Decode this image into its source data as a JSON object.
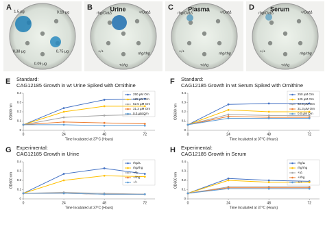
{
  "photos": [
    {
      "panel": "A",
      "labels": [
        "1.5 µg",
        "0.19 µg",
        "0.38 µg",
        "0.75 µg",
        "0.09 µg"
      ]
    },
    {
      "panel": "B",
      "title": "Urine",
      "labels": [
        "rhg/OatΔ",
        "+/OatΔ",
        "+/+",
        "rhg/rhg",
        "+/rhg"
      ]
    },
    {
      "panel": "C",
      "title": "Plasma",
      "labels": [
        "rhg/OatΔ",
        "+/OatΔ",
        "+/+",
        "rhg/rhg",
        "+/rhg"
      ]
    },
    {
      "panel": "D",
      "title": "Serum",
      "labels": [
        "rhg/OatΔ",
        "+/OatΔ",
        "+/+",
        "rhg/rhg",
        "+/rhg"
      ]
    }
  ],
  "chart_data": [
    {
      "type": "line",
      "panel": "E",
      "heading": "Standard:",
      "title": "CAG12185 Growth in wt Urine Spiked with Ornithine",
      "x_label": "Time Incubated at 37°C (Hours)",
      "y_label": "OD600 nm",
      "x": [
        0,
        24,
        48,
        72
      ],
      "xlim": [
        0,
        78
      ],
      "xticks": [
        0,
        24,
        48,
        72
      ],
      "ylim": [
        0,
        0.4
      ],
      "yticks": [
        0,
        0.1,
        0.2,
        0.3,
        0.4
      ],
      "series": [
        {
          "name": "250 µM Orn",
          "color": "#4472c4",
          "values": [
            0.06,
            0.24,
            0.33,
            0.34
          ]
        },
        {
          "name": "125 µM Orn",
          "color": "#ffc000",
          "values": [
            0.06,
            0.2,
            0.26,
            0.26
          ]
        },
        {
          "name": "62.5 µM Orn",
          "color": "#a5a5a5",
          "values": [
            0.06,
            0.14,
            0.16,
            0.17
          ]
        },
        {
          "name": "31.3 µM Orn",
          "color": "#ed7d31",
          "values": [
            0.06,
            0.09,
            0.08,
            0.07
          ]
        },
        {
          "name": "0.0 µM Orn",
          "color": "#5b9bd5",
          "values": [
            0.06,
            0.06,
            0.05,
            0.05
          ]
        }
      ]
    },
    {
      "type": "line",
      "panel": "F",
      "heading": "Standard:",
      "title": "CAG12185 Growth in wt Serum Spiked with Ornithine",
      "x_label": "Time Incubated at 37°C (Hours)",
      "y_label": "OD600 nm",
      "x": [
        0,
        24,
        48,
        72
      ],
      "xlim": [
        0,
        78
      ],
      "xticks": [
        0,
        24,
        48,
        72
      ],
      "ylim": [
        0,
        0.4
      ],
      "yticks": [
        0,
        0.1,
        0.2,
        0.3,
        0.4
      ],
      "series": [
        {
          "name": "250 µM Orn",
          "color": "#4472c4",
          "values": [
            0.06,
            0.28,
            0.29,
            0.29
          ]
        },
        {
          "name": "125 µM Orn",
          "color": "#ffc000",
          "values": [
            0.06,
            0.22,
            0.2,
            0.2
          ]
        },
        {
          "name": "62.5 µM Orn",
          "color": "#a5a5a5",
          "values": [
            0.06,
            0.17,
            0.16,
            0.16
          ]
        },
        {
          "name": "31.3 µM Orn",
          "color": "#ed7d31",
          "values": [
            0.06,
            0.15,
            0.14,
            0.14
          ]
        },
        {
          "name": "0.0 µM Orn",
          "color": "#5b9bd5",
          "values": [
            0.06,
            0.13,
            0.13,
            0.13
          ]
        }
      ]
    },
    {
      "type": "line",
      "panel": "G",
      "heading": "Experimental:",
      "title": "CAG12185 Growth in Urine",
      "x_label": "Time Incubated at 37°C (Hours)",
      "y_label": "OD600 nm",
      "x": [
        0,
        24,
        48,
        72
      ],
      "xlim": [
        0,
        78
      ],
      "xticks": [
        0,
        24,
        48,
        72
      ],
      "ylim": [
        0,
        0.4
      ],
      "yticks": [
        0,
        0.1,
        0.2,
        0.3,
        0.4
      ],
      "series": [
        {
          "name": "rhg/Δ",
          "color": "#4472c4",
          "values": [
            0.06,
            0.27,
            0.33,
            0.27
          ]
        },
        {
          "name": "rhg/rhg",
          "color": "#ffc000",
          "values": [
            0.06,
            0.2,
            0.25,
            0.24
          ]
        },
        {
          "name": "+/Δ",
          "color": "#a5a5a5",
          "values": [
            0.06,
            0.07,
            0.06,
            0.05
          ]
        },
        {
          "name": "+/rhg",
          "color": "#ed7d31",
          "values": [
            0.06,
            0.06,
            0.05,
            0.05
          ]
        },
        {
          "name": "+/+",
          "color": "#5b9bd5",
          "values": [
            0.06,
            0.06,
            0.05,
            0.05
          ]
        }
      ]
    },
    {
      "type": "line",
      "panel": "H",
      "heading": "Experimental:",
      "title": "CAG12185 Growth in Serum",
      "x_label": "Time Incubated at 37°C (Hours)",
      "y_label": "OD600 nm",
      "x": [
        0,
        24,
        48,
        72
      ],
      "xlim": [
        0,
        78
      ],
      "xticks": [
        0,
        24,
        48,
        72
      ],
      "ylim": [
        0,
        0.4
      ],
      "yticks": [
        0,
        0.1,
        0.2,
        0.3,
        0.4
      ],
      "series": [
        {
          "name": "rhg/Δ",
          "color": "#4472c4",
          "values": [
            0.06,
            0.22,
            0.2,
            0.19
          ]
        },
        {
          "name": "rhg/rhg",
          "color": "#ffc000",
          "values": [
            0.06,
            0.2,
            0.18,
            0.18
          ]
        },
        {
          "name": "+/Δ",
          "color": "#a5a5a5",
          "values": [
            0.06,
            0.13,
            0.13,
            0.13
          ]
        },
        {
          "name": "+/rhg",
          "color": "#ed7d31",
          "values": [
            0.06,
            0.12,
            0.12,
            0.12
          ]
        },
        {
          "name": "+/+",
          "color": "#5b9bd5",
          "values": [
            0.06,
            0.11,
            0.11,
            0.11
          ]
        }
      ]
    }
  ]
}
